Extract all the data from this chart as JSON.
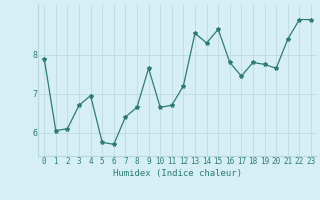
{
  "x": [
    0,
    1,
    2,
    3,
    4,
    5,
    6,
    7,
    8,
    9,
    10,
    11,
    12,
    13,
    14,
    15,
    16,
    17,
    18,
    19,
    20,
    21,
    22,
    23
  ],
  "y": [
    7.9,
    6.05,
    6.1,
    6.7,
    6.95,
    5.75,
    5.7,
    6.4,
    6.65,
    7.65,
    6.65,
    6.7,
    7.2,
    8.55,
    8.3,
    8.65,
    7.8,
    7.45,
    7.8,
    7.75,
    7.65,
    8.4,
    8.9,
    8.9
  ],
  "line_color": "#2d7d6e",
  "marker": "*",
  "marker_size": 3,
  "bg_color": "#d6eff5",
  "grid_color": "#b8d8e0",
  "xlabel": "Humidex (Indice chaleur)",
  "yticks": [
    6,
    7,
    8
  ],
  "ylim": [
    5.4,
    9.3
  ],
  "xlim": [
    -0.5,
    23.5
  ],
  "tick_fontsize": 5.5,
  "xlabel_fontsize": 6.5
}
